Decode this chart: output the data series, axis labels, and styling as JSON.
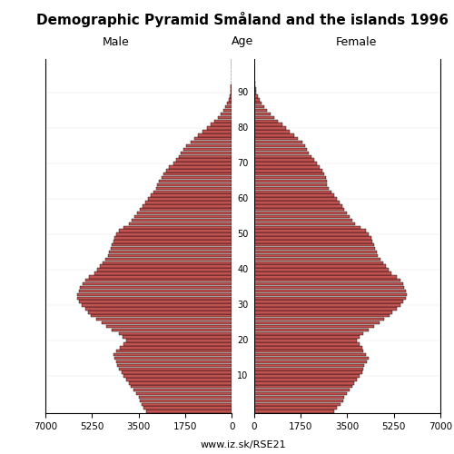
{
  "title": "Demographic Pyramid Småland and the islands 1996",
  "male_label": "Male",
  "female_label": "Female",
  "age_label": "Age",
  "watermark": "www.iz.sk/RSE21",
  "xlim": 7000,
  "bar_color": "#c1524f",
  "edge_color": "#000000",
  "ages": [
    0,
    1,
    2,
    3,
    4,
    5,
    6,
    7,
    8,
    9,
    10,
    11,
    12,
    13,
    14,
    15,
    16,
    17,
    18,
    19,
    20,
    21,
    22,
    23,
    24,
    25,
    26,
    27,
    28,
    29,
    30,
    31,
    32,
    33,
    34,
    35,
    36,
    37,
    38,
    39,
    40,
    41,
    42,
    43,
    44,
    45,
    46,
    47,
    48,
    49,
    50,
    51,
    52,
    53,
    54,
    55,
    56,
    57,
    58,
    59,
    60,
    61,
    62,
    63,
    64,
    65,
    66,
    67,
    68,
    69,
    70,
    71,
    72,
    73,
    74,
    75,
    76,
    77,
    78,
    79,
    80,
    81,
    82,
    83,
    84,
    85,
    86,
    87,
    88,
    89,
    90,
    91,
    92,
    93,
    94,
    95,
    96,
    97,
    98,
    99
  ],
  "male": [
    3200,
    3300,
    3400,
    3450,
    3500,
    3600,
    3700,
    3800,
    3850,
    3950,
    4050,
    4150,
    4250,
    4300,
    4350,
    4400,
    4450,
    4350,
    4200,
    4050,
    3950,
    4100,
    4250,
    4500,
    4700,
    4900,
    5100,
    5300,
    5400,
    5500,
    5650,
    5750,
    5800,
    5800,
    5750,
    5700,
    5600,
    5500,
    5350,
    5150,
    5050,
    4950,
    4850,
    4750,
    4650,
    4600,
    4550,
    4500,
    4450,
    4400,
    4350,
    4250,
    4050,
    3850,
    3750,
    3650,
    3550,
    3450,
    3350,
    3250,
    3150,
    3050,
    2950,
    2850,
    2800,
    2750,
    2650,
    2550,
    2450,
    2350,
    2200,
    2100,
    2000,
    1900,
    1800,
    1700,
    1550,
    1400,
    1270,
    1100,
    930,
    780,
    640,
    510,
    400,
    310,
    240,
    170,
    120,
    80,
    55,
    38,
    25,
    15,
    9,
    5,
    3,
    2,
    1,
    0
  ],
  "female": [
    3000,
    3100,
    3250,
    3350,
    3400,
    3500,
    3600,
    3700,
    3750,
    3850,
    3950,
    4050,
    4100,
    4150,
    4250,
    4300,
    4200,
    4100,
    4050,
    3950,
    3850,
    3950,
    4100,
    4300,
    4500,
    4700,
    4900,
    5100,
    5200,
    5350,
    5500,
    5600,
    5700,
    5750,
    5700,
    5650,
    5600,
    5500,
    5350,
    5150,
    5050,
    4950,
    4850,
    4750,
    4650,
    4600,
    4550,
    4500,
    4450,
    4400,
    4300,
    4200,
    4000,
    3800,
    3700,
    3600,
    3500,
    3400,
    3300,
    3200,
    3100,
    3000,
    2900,
    2800,
    2750,
    2750,
    2700,
    2650,
    2550,
    2450,
    2350,
    2250,
    2150,
    2050,
    2000,
    1900,
    1800,
    1650,
    1500,
    1350,
    1200,
    1050,
    900,
    760,
    620,
    500,
    390,
    285,
    200,
    130,
    90,
    62,
    40,
    24,
    14,
    8,
    5,
    3,
    1,
    0
  ]
}
